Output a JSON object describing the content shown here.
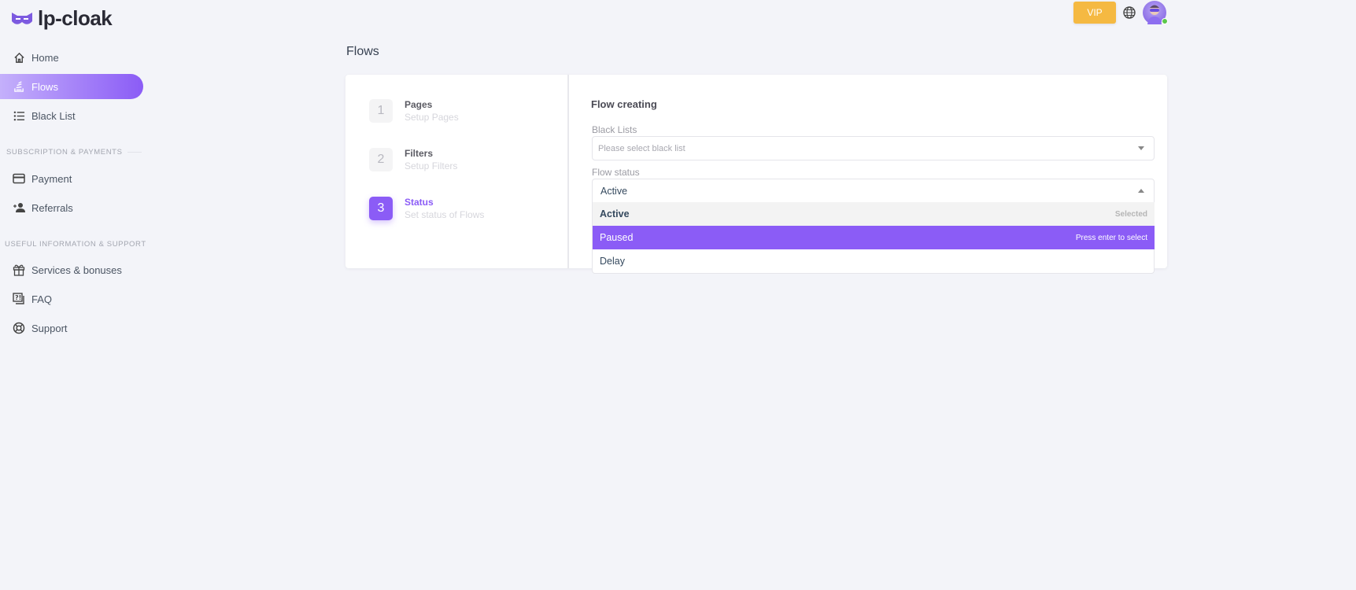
{
  "brand": {
    "name": "lp-cloak",
    "accent": "#8b5cf6"
  },
  "header": {
    "vip_label": "VIP",
    "vip_color": "#f5b942",
    "language_icon": "globe-icon",
    "avatar_status": "online"
  },
  "sidebar": {
    "items": [
      {
        "label": "Home",
        "icon": "home-icon"
      },
      {
        "label": "Flows",
        "icon": "flows-icon",
        "active": true
      },
      {
        "label": "Black List",
        "icon": "list-icon"
      }
    ],
    "section1": "SUBSCRIPTION & PAYMENTS",
    "items2": [
      {
        "label": "Payment",
        "icon": "credit-card-icon"
      },
      {
        "label": "Referrals",
        "icon": "user-plus-icon"
      }
    ],
    "section2": "USEFUL INFORMATION & SUPPORT",
    "items3": [
      {
        "label": "Services & bonuses",
        "icon": "gift-icon"
      },
      {
        "label": "FAQ",
        "icon": "faq-icon"
      },
      {
        "label": "Support",
        "icon": "lifebuoy-icon"
      }
    ]
  },
  "page": {
    "title": "Flows"
  },
  "steps": [
    {
      "number": "1",
      "title": "Pages",
      "subtitle": "Setup Pages"
    },
    {
      "number": "2",
      "title": "Filters",
      "subtitle": "Setup Filters"
    },
    {
      "number": "3",
      "title": "Status",
      "subtitle": "Set status of Flows",
      "active": true
    }
  ],
  "form": {
    "heading": "Flow creating",
    "black_lists_label": "Black Lists",
    "black_lists_placeholder": "Please select black list",
    "flow_status_label": "Flow status",
    "flow_status_value": "Active",
    "options": [
      {
        "label": "Active",
        "hint": "Selected"
      },
      {
        "label": "Paused",
        "hint": "Press enter to select"
      },
      {
        "label": "Delay",
        "hint": ""
      }
    ]
  }
}
